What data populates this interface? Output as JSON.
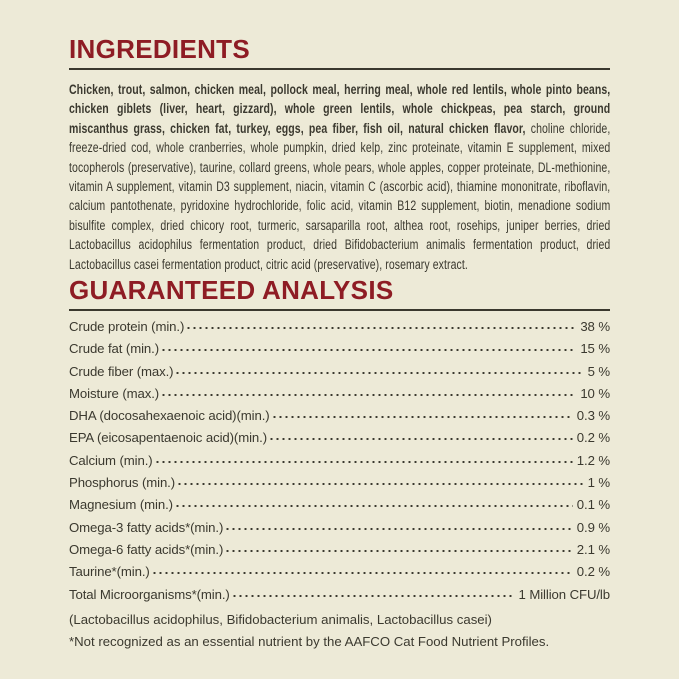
{
  "colors": {
    "background": "#edead7",
    "accent_red": "#8e1c24",
    "ink": "#3b392f"
  },
  "ingredients": {
    "title": "INGREDIENTS",
    "bold_text": "Chicken, trout, salmon, chicken meal, pollock meal, herring meal, whole red lentils, whole pinto beans, chicken giblets (liver, heart, gizzard), whole green lentils, whole chickpeas, pea starch, ground miscanthus grass, chicken fat, turkey, eggs, pea fiber, fish oil, natural chicken flavor,",
    "regular_text": " choline chloride, freeze-dried cod, whole cranberries, whole pumpkin, dried kelp, zinc proteinate, vitamin E supplement, mixed tocopherols (preservative), taurine, collard greens, whole pears, whole apples, copper proteinate, DL-methionine, vitamin A supplement, vitamin D3 supplement, niacin, vitamin C (ascorbic acid), thiamine mononitrate, riboflavin, calcium pantothenate, pyridoxine hydrochloride, folic acid, vitamin B12 supplement, biotin, menadione sodium bisulfite complex, dried chicory root, turmeric, sarsaparilla root, althea root, rosehips, juniper berries, dried Lactobacillus acidophilus fermentation product, dried Bifidobacterium animalis fermentation product, dried Lactobacillus casei fermentation product, citric acid (preservative), rosemary extract."
  },
  "analysis": {
    "title": "GUARANTEED ANALYSIS",
    "rows": [
      {
        "label": "Crude protein (min.)",
        "value": "38 %"
      },
      {
        "label": "Crude fat (min.)",
        "value": "15 %"
      },
      {
        "label": "Crude fiber (max.)",
        "value": "5 %"
      },
      {
        "label": "Moisture (max.)",
        "value": "10 %"
      },
      {
        "label": "DHA (docosahexaenoic acid)(min.)",
        "value": "0.3 %"
      },
      {
        "label": "EPA (eicosapentaenoic acid)(min.)",
        "value": "0.2 %"
      },
      {
        "label": "Calcium (min.)",
        "value": "1.2 %"
      },
      {
        "label": "Phosphorus (min.)",
        "value": "1 %"
      },
      {
        "label": "Magnesium (min.)",
        "value": "0.1 %"
      },
      {
        "label": "Omega-3 fatty acids*(min.)",
        "value": "0.9 %"
      },
      {
        "label": "Omega-6 fatty acids*(min.)",
        "value": "2.1 %"
      },
      {
        "label": "Taurine*(min.)",
        "value": "0.2 %"
      },
      {
        "label": "Total Microorganisms*(min.)",
        "value": "1 Million CFU/lb"
      }
    ],
    "microorganisms_detail": "(Lactobacillus acidophilus, Bifidobacterium animalis, Lactobacillus casei)",
    "footnote": "*Not recognized as an essential nutrient by the AAFCO Cat Food Nutrient Profiles."
  }
}
